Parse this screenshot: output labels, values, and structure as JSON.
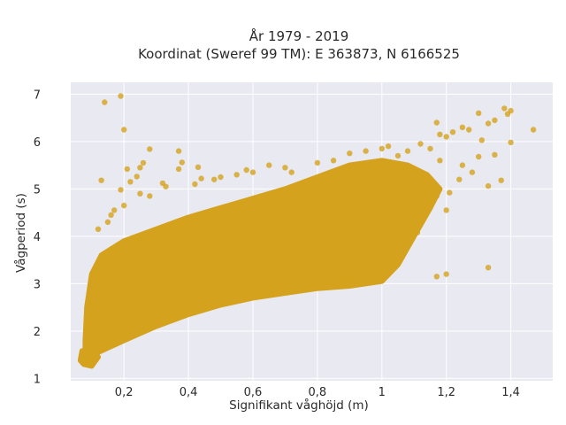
{
  "chart_data": {
    "type": "scatter",
    "title_lines": [
      "År 1979 - 2019",
      "Koordinat (Sweref 99 TM): E 363873, N 6166525"
    ],
    "xlabel": "Signifikant våghöjd (m)",
    "ylabel": "Vågperiod (s)",
    "xlim": [
      0.035,
      1.53
    ],
    "ylim": [
      0.95,
      7.25
    ],
    "x_ticks": [
      0.2,
      0.4,
      0.6,
      0.8,
      1.0,
      1.2,
      1.4
    ],
    "x_tick_labels": [
      "0,2",
      "0,4",
      "0,6",
      "0,8",
      "1",
      "1,2",
      "1,4"
    ],
    "y_ticks": [
      1,
      2,
      3,
      4,
      5,
      6,
      7
    ],
    "y_tick_labels": [
      "1",
      "2",
      "3",
      "4",
      "5",
      "6",
      "7"
    ],
    "grid": true,
    "plot_background": "#e9e9f2",
    "marker_color": "#d4a21c",
    "series": [
      {
        "points": [
          [
            0.14,
            6.83
          ],
          [
            0.19,
            6.96
          ],
          [
            0.2,
            6.25
          ],
          [
            0.13,
            5.18
          ],
          [
            0.19,
            4.98
          ],
          [
            0.21,
            5.42
          ],
          [
            0.25,
            5.45
          ],
          [
            0.28,
            5.84
          ],
          [
            0.26,
            5.55
          ],
          [
            0.37,
            5.8
          ],
          [
            0.37,
            5.42
          ],
          [
            0.38,
            5.56
          ],
          [
            0.43,
            5.46
          ],
          [
            0.44,
            5.22
          ],
          [
            0.5,
            5.25
          ],
          [
            0.22,
            5.15
          ],
          [
            0.32,
            5.12
          ],
          [
            0.24,
            5.26
          ],
          [
            0.15,
            4.3
          ],
          [
            0.17,
            4.55
          ],
          [
            0.25,
            4.9
          ],
          [
            0.12,
            4.15
          ],
          [
            0.16,
            4.45
          ],
          [
            0.2,
            4.65
          ],
          [
            0.28,
            4.85
          ],
          [
            0.65,
            5.5
          ],
          [
            0.7,
            5.45
          ],
          [
            0.72,
            5.35
          ],
          [
            0.8,
            5.55
          ],
          [
            0.85,
            5.6
          ],
          [
            0.9,
            5.75
          ],
          [
            0.95,
            5.8
          ],
          [
            1.0,
            5.85
          ],
          [
            1.02,
            5.9
          ],
          [
            1.05,
            5.7
          ],
          [
            1.08,
            5.8
          ],
          [
            1.12,
            5.95
          ],
          [
            1.15,
            5.85
          ],
          [
            1.18,
            6.15
          ],
          [
            1.2,
            6.1
          ],
          [
            1.22,
            6.2
          ],
          [
            1.25,
            6.3
          ],
          [
            1.27,
            6.25
          ],
          [
            1.17,
            6.4
          ],
          [
            1.3,
            6.6
          ],
          [
            1.33,
            6.38
          ],
          [
            1.35,
            6.45
          ],
          [
            1.38,
            6.7
          ],
          [
            1.39,
            6.58
          ],
          [
            1.4,
            6.65
          ],
          [
            1.47,
            6.25
          ],
          [
            1.4,
            5.98
          ],
          [
            1.31,
            6.03
          ],
          [
            1.3,
            5.68
          ],
          [
            1.35,
            5.72
          ],
          [
            1.33,
            5.06
          ],
          [
            1.37,
            5.18
          ],
          [
            1.28,
            5.35
          ],
          [
            1.25,
            5.5
          ],
          [
            1.18,
            5.6
          ],
          [
            1.24,
            5.2
          ],
          [
            1.21,
            4.92
          ],
          [
            1.17,
            4.85
          ],
          [
            1.15,
            4.75
          ],
          [
            1.14,
            4.5
          ],
          [
            1.09,
            4.35
          ],
          [
            1.05,
            4.22
          ],
          [
            1.02,
            3.87
          ],
          [
            1.0,
            3.8
          ],
          [
            1.08,
            3.95
          ],
          [
            0.95,
            3.3
          ],
          [
            0.93,
            3.45
          ],
          [
            0.9,
            3.1
          ],
          [
            0.88,
            3.0
          ],
          [
            0.85,
            3.2
          ],
          [
            0.82,
            3.05
          ],
          [
            1.0,
            3.15
          ],
          [
            1.2,
            3.2
          ],
          [
            1.17,
            3.15
          ],
          [
            1.33,
            3.34
          ],
          [
            1.06,
            3.85
          ],
          [
            1.11,
            4.08
          ],
          [
            1.2,
            4.55
          ],
          [
            1.1,
            4.6
          ],
          [
            0.6,
            5.35
          ],
          [
            0.55,
            5.3
          ],
          [
            0.48,
            5.2
          ],
          [
            0.58,
            5.4
          ],
          [
            0.42,
            5.1
          ],
          [
            0.33,
            5.05
          ]
        ]
      }
    ],
    "density_polygon": [
      [
        0.08,
        1.35
      ],
      [
        0.12,
        1.55
      ],
      [
        0.2,
        1.8
      ],
      [
        0.3,
        2.1
      ],
      [
        0.4,
        2.35
      ],
      [
        0.5,
        2.55
      ],
      [
        0.6,
        2.7
      ],
      [
        0.7,
        2.8
      ],
      [
        0.8,
        2.9
      ],
      [
        0.9,
        2.95
      ],
      [
        1.0,
        3.05
      ],
      [
        1.05,
        3.4
      ],
      [
        1.1,
        4.0
      ],
      [
        1.15,
        4.6
      ],
      [
        1.18,
        5.0
      ],
      [
        1.14,
        5.3
      ],
      [
        1.08,
        5.5
      ],
      [
        1.0,
        5.6
      ],
      [
        0.9,
        5.5
      ],
      [
        0.8,
        5.25
      ],
      [
        0.7,
        5.0
      ],
      [
        0.6,
        4.8
      ],
      [
        0.5,
        4.6
      ],
      [
        0.4,
        4.4
      ],
      [
        0.3,
        4.15
      ],
      [
        0.2,
        3.9
      ],
      [
        0.13,
        3.6
      ],
      [
        0.1,
        3.2
      ],
      [
        0.085,
        2.5
      ],
      [
        0.08,
        1.8
      ]
    ],
    "density_tail": [
      [
        0.065,
        1.38
      ],
      [
        0.075,
        1.3
      ],
      [
        0.1,
        1.26
      ],
      [
        0.12,
        1.45
      ],
      [
        0.1,
        1.6
      ],
      [
        0.07,
        1.58
      ]
    ]
  }
}
